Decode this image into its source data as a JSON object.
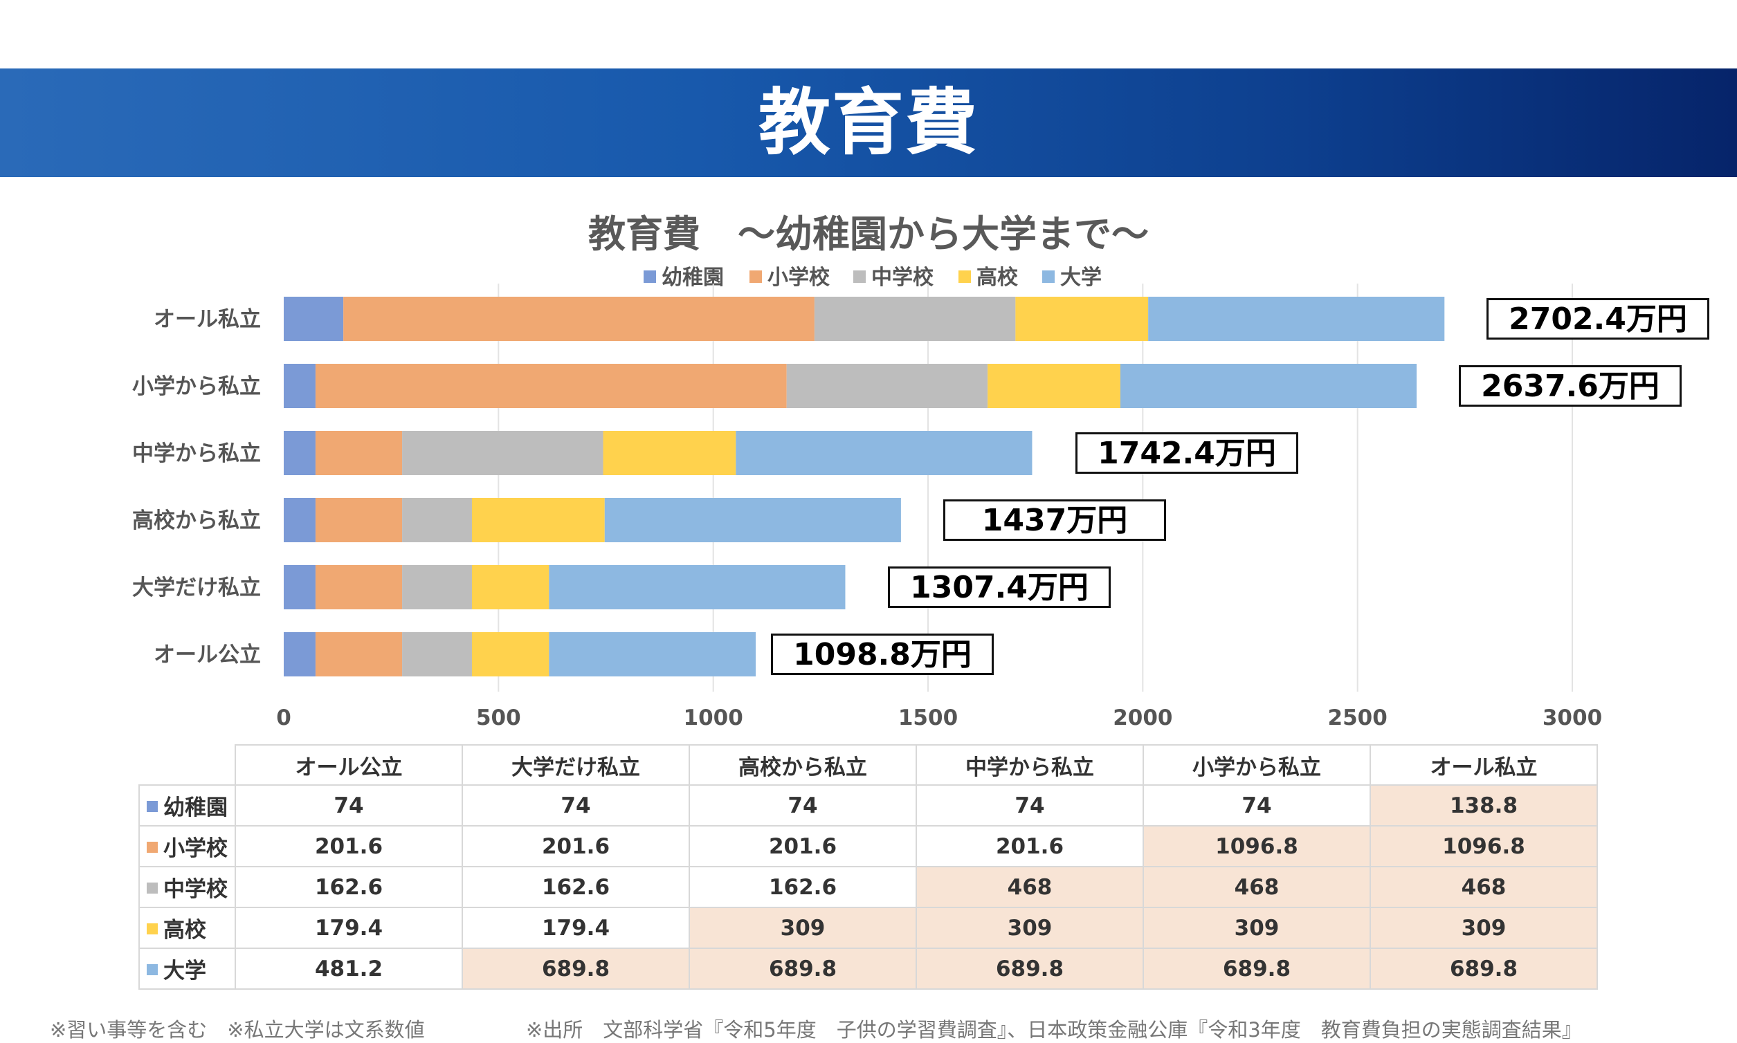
{
  "banner": {
    "title": "教育費"
  },
  "chart_data": {
    "type": "bar",
    "orientation": "horizontal",
    "stacked": true,
    "title": "教育費　～幼稚園から大学まで～",
    "categories": [
      "オール私立",
      "小学から私立",
      "中学から私立",
      "高校から私立",
      "大学だけ私立",
      "オール公立"
    ],
    "series": [
      {
        "name": "幼稚園",
        "color": "#7b9ad6",
        "values": [
          138.8,
          74,
          74,
          74,
          74,
          74
        ]
      },
      {
        "name": "小学校",
        "color": "#f0a872",
        "values": [
          1096.8,
          1096.8,
          201.6,
          201.6,
          201.6,
          201.6
        ]
      },
      {
        "name": "中学校",
        "color": "#bdbdbd",
        "values": [
          468,
          468,
          468,
          162.6,
          162.6,
          162.6
        ]
      },
      {
        "name": "高校",
        "color": "#ffd24d",
        "values": [
          309,
          309,
          309,
          309,
          179.4,
          179.4
        ]
      },
      {
        "name": "大学",
        "color": "#8db8e1",
        "values": [
          689.8,
          689.8,
          689.8,
          689.8,
          689.8,
          481.2
        ]
      }
    ],
    "totals": [
      "2702.4万円",
      "2637.6万円",
      "1742.4万円",
      "1437万円",
      "1307.4万円",
      "1098.8万円"
    ],
    "xlim": [
      0,
      3000
    ],
    "xticks": [
      0,
      500,
      1000,
      1500,
      2000,
      2500,
      3000
    ],
    "grid": "vertical",
    "legend": "top"
  },
  "table": {
    "columns": [
      "オール公立",
      "大学だけ私立",
      "高校から私立",
      "中学から私立",
      "小学から私立",
      "オール私立"
    ],
    "rows": [
      {
        "label": "幼稚園",
        "color": "#7b9ad6",
        "values": [
          "74",
          "74",
          "74",
          "74",
          "74",
          "138.8"
        ],
        "highlight": [
          false,
          false,
          false,
          false,
          false,
          true
        ]
      },
      {
        "label": "小学校",
        "color": "#f0a872",
        "values": [
          "201.6",
          "201.6",
          "201.6",
          "201.6",
          "1096.8",
          "1096.8"
        ],
        "highlight": [
          false,
          false,
          false,
          false,
          true,
          true
        ]
      },
      {
        "label": "中学校",
        "color": "#bdbdbd",
        "values": [
          "162.6",
          "162.6",
          "162.6",
          "468",
          "468",
          "468"
        ],
        "highlight": [
          false,
          false,
          false,
          true,
          true,
          true
        ]
      },
      {
        "label": "高校",
        "color": "#ffd24d",
        "values": [
          "179.4",
          "179.4",
          "309",
          "309",
          "309",
          "309"
        ],
        "highlight": [
          false,
          false,
          true,
          true,
          true,
          true
        ]
      },
      {
        "label": "大学",
        "color": "#8db8e1",
        "values": [
          "481.2",
          "689.8",
          "689.8",
          "689.8",
          "689.8",
          "689.8"
        ],
        "highlight": [
          false,
          true,
          true,
          true,
          true,
          true
        ]
      }
    ],
    "highlight_color": "#f8e4d5"
  },
  "footnotes": {
    "left": "※習い事等を含む　※私立大学は文系数値",
    "right": "※出所　文部科学省『令和5年度　子供の学習費調査』、日本政策金融公庫『令和3年度　教育費負担の実態調査結果』"
  }
}
